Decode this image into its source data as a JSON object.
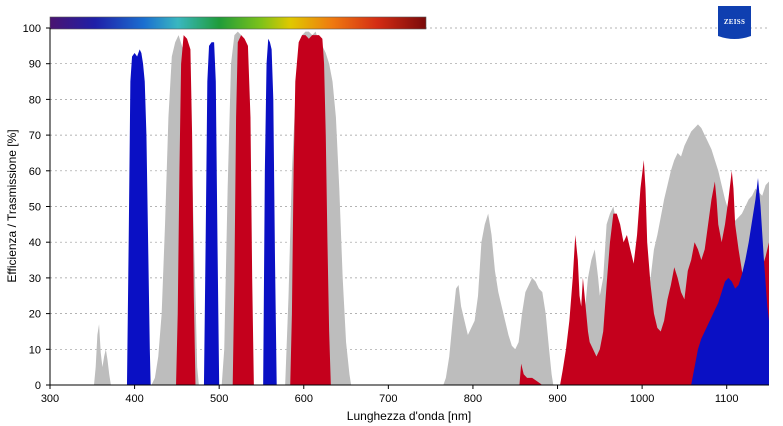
{
  "chart_data": {
    "type": "area",
    "title": "",
    "xlabel": "Lunghezza d'onda [nm]",
    "ylabel": "Efficienza / Trasmissione [%]",
    "xlim": [
      300,
      1150
    ],
    "ylim": [
      0,
      100
    ],
    "xticks": [
      300,
      400,
      500,
      600,
      700,
      800,
      900,
      1000,
      1100
    ],
    "yticks": [
      0,
      10,
      20,
      30,
      40,
      50,
      60,
      70,
      80,
      90,
      100
    ],
    "grid": "horizontal dashed",
    "colorbar_range": [
      300,
      750
    ],
    "series": [
      {
        "color": "#bdbdbd",
        "points": [
          [
            300,
            0
          ],
          [
            352,
            0
          ],
          [
            354,
            5
          ],
          [
            356,
            14
          ],
          [
            358,
            17
          ],
          [
            360,
            9
          ],
          [
            362,
            5
          ],
          [
            364,
            8
          ],
          [
            366,
            10
          ],
          [
            368,
            7
          ],
          [
            370,
            3
          ],
          [
            372,
            0
          ],
          [
            420,
            0
          ],
          [
            424,
            2
          ],
          [
            428,
            8
          ],
          [
            432,
            20
          ],
          [
            436,
            45
          ],
          [
            440,
            75
          ],
          [
            444,
            92
          ],
          [
            448,
            96
          ],
          [
            452,
            98
          ],
          [
            456,
            95
          ],
          [
            460,
            92
          ],
          [
            464,
            90
          ],
          [
            468,
            60
          ],
          [
            472,
            25
          ],
          [
            474,
            5
          ],
          [
            476,
            0
          ],
          [
            503,
            0
          ],
          [
            506,
            10
          ],
          [
            510,
            55
          ],
          [
            514,
            90
          ],
          [
            518,
            98
          ],
          [
            522,
            99
          ],
          [
            526,
            98
          ],
          [
            530,
            96
          ],
          [
            534,
            70
          ],
          [
            538,
            20
          ],
          [
            540,
            0
          ],
          [
            578,
            0
          ],
          [
            582,
            25
          ],
          [
            586,
            60
          ],
          [
            590,
            80
          ],
          [
            594,
            92
          ],
          [
            598,
            98
          ],
          [
            602,
            99
          ],
          [
            606,
            99
          ],
          [
            610,
            98
          ],
          [
            614,
            99
          ],
          [
            618,
            96
          ],
          [
            622,
            95
          ],
          [
            626,
            93
          ],
          [
            630,
            90
          ],
          [
            634,
            85
          ],
          [
            638,
            75
          ],
          [
            642,
            55
          ],
          [
            646,
            30
          ],
          [
            650,
            12
          ],
          [
            654,
            3
          ],
          [
            656,
            0
          ],
          [
            765,
            0
          ],
          [
            768,
            2
          ],
          [
            772,
            8
          ],
          [
            776,
            18
          ],
          [
            780,
            27
          ],
          [
            783,
            28
          ],
          [
            786,
            22
          ],
          [
            790,
            18
          ],
          [
            794,
            14
          ],
          [
            798,
            16
          ],
          [
            802,
            18
          ],
          [
            806,
            25
          ],
          [
            810,
            40
          ],
          [
            814,
            45
          ],
          [
            818,
            48
          ],
          [
            822,
            42
          ],
          [
            826,
            32
          ],
          [
            830,
            26
          ],
          [
            834,
            22
          ],
          [
            838,
            18
          ],
          [
            842,
            14
          ],
          [
            846,
            11
          ],
          [
            850,
            10
          ],
          [
            854,
            12
          ],
          [
            858,
            20
          ],
          [
            862,
            26
          ],
          [
            866,
            28
          ],
          [
            870,
            30
          ],
          [
            874,
            29
          ],
          [
            878,
            27
          ],
          [
            882,
            26
          ],
          [
            886,
            20
          ],
          [
            890,
            10
          ],
          [
            893,
            3
          ],
          [
            895,
            0
          ],
          [
            925,
            0
          ],
          [
            928,
            10
          ],
          [
            932,
            20
          ],
          [
            936,
            30
          ],
          [
            940,
            35
          ],
          [
            944,
            38
          ],
          [
            948,
            30
          ],
          [
            950,
            25
          ],
          [
            954,
            30
          ],
          [
            958,
            45
          ],
          [
            962,
            48
          ],
          [
            966,
            50
          ],
          [
            970,
            45
          ],
          [
            974,
            35
          ],
          [
            978,
            30
          ],
          [
            982,
            32
          ],
          [
            986,
            36
          ],
          [
            990,
            30
          ],
          [
            994,
            25
          ],
          [
            998,
            20
          ],
          [
            1002,
            18
          ],
          [
            1006,
            22
          ],
          [
            1010,
            30
          ],
          [
            1014,
            38
          ],
          [
            1018,
            42
          ],
          [
            1022,
            47
          ],
          [
            1026,
            52
          ],
          [
            1030,
            56
          ],
          [
            1034,
            60
          ],
          [
            1038,
            63
          ],
          [
            1042,
            65
          ],
          [
            1046,
            64
          ],
          [
            1050,
            67
          ],
          [
            1054,
            69
          ],
          [
            1058,
            71
          ],
          [
            1062,
            72
          ],
          [
            1066,
            73
          ],
          [
            1070,
            72
          ],
          [
            1074,
            70
          ],
          [
            1078,
            68
          ],
          [
            1082,
            66
          ],
          [
            1086,
            63
          ],
          [
            1090,
            60
          ],
          [
            1094,
            56
          ],
          [
            1098,
            52
          ],
          [
            1102,
            49
          ],
          [
            1106,
            48
          ],
          [
            1110,
            46
          ],
          [
            1114,
            47
          ],
          [
            1118,
            48
          ],
          [
            1122,
            50
          ],
          [
            1126,
            52
          ],
          [
            1130,
            53
          ],
          [
            1134,
            55
          ],
          [
            1138,
            54
          ],
          [
            1142,
            53
          ],
          [
            1146,
            56
          ],
          [
            1150,
            57
          ],
          [
            1150,
            0
          ]
        ]
      },
      {
        "color": "#c4001c",
        "points": [
          [
            300,
            0
          ],
          [
            449,
            0
          ],
          [
            451,
            20
          ],
          [
            453,
            60
          ],
          [
            455,
            90
          ],
          [
            458,
            98
          ],
          [
            462,
            97
          ],
          [
            466,
            94
          ],
          [
            468,
            70
          ],
          [
            470,
            25
          ],
          [
            472,
            0
          ],
          [
            516,
            0
          ],
          [
            518,
            30
          ],
          [
            520,
            75
          ],
          [
            522,
            96
          ],
          [
            526,
            98
          ],
          [
            530,
            97
          ],
          [
            534,
            95
          ],
          [
            537,
            75
          ],
          [
            539,
            30
          ],
          [
            541,
            0
          ],
          [
            584,
            0
          ],
          [
            586,
            20
          ],
          [
            588,
            60
          ],
          [
            590,
            85
          ],
          [
            594,
            96
          ],
          [
            598,
            98
          ],
          [
            602,
            98
          ],
          [
            606,
            97
          ],
          [
            610,
            98
          ],
          [
            614,
            98
          ],
          [
            618,
            98
          ],
          [
            622,
            97
          ],
          [
            624,
            90
          ],
          [
            626,
            70
          ],
          [
            628,
            40
          ],
          [
            630,
            15
          ],
          [
            632,
            0
          ],
          [
            855,
            0
          ],
          [
            857,
            6
          ],
          [
            860,
            3
          ],
          [
            864,
            2
          ],
          [
            870,
            2
          ],
          [
            876,
            1
          ],
          [
            882,
            0
          ],
          [
            903,
            0
          ],
          [
            906,
            4
          ],
          [
            910,
            10
          ],
          [
            914,
            18
          ],
          [
            918,
            30
          ],
          [
            921,
            42
          ],
          [
            924,
            35
          ],
          [
            926,
            25
          ],
          [
            928,
            22
          ],
          [
            930,
            30
          ],
          [
            932,
            25
          ],
          [
            934,
            20
          ],
          [
            936,
            15
          ],
          [
            938,
            12
          ],
          [
            942,
            10
          ],
          [
            946,
            8
          ],
          [
            950,
            10
          ],
          [
            954,
            15
          ],
          [
            958,
            28
          ],
          [
            962,
            40
          ],
          [
            966,
            48
          ],
          [
            970,
            48
          ],
          [
            974,
            45
          ],
          [
            978,
            40
          ],
          [
            982,
            42
          ],
          [
            986,
            38
          ],
          [
            990,
            34
          ],
          [
            994,
            42
          ],
          [
            998,
            55
          ],
          [
            1002,
            63
          ],
          [
            1004,
            55
          ],
          [
            1006,
            40
          ],
          [
            1010,
            28
          ],
          [
            1014,
            20
          ],
          [
            1018,
            16
          ],
          [
            1022,
            15
          ],
          [
            1026,
            18
          ],
          [
            1030,
            24
          ],
          [
            1034,
            28
          ],
          [
            1038,
            33
          ],
          [
            1042,
            30
          ],
          [
            1046,
            26
          ],
          [
            1050,
            24
          ],
          [
            1054,
            32
          ],
          [
            1058,
            35
          ],
          [
            1062,
            40
          ],
          [
            1066,
            38
          ],
          [
            1070,
            35
          ],
          [
            1074,
            38
          ],
          [
            1078,
            45
          ],
          [
            1082,
            52
          ],
          [
            1086,
            57
          ],
          [
            1088,
            52
          ],
          [
            1090,
            45
          ],
          [
            1094,
            40
          ],
          [
            1098,
            45
          ],
          [
            1102,
            52
          ],
          [
            1106,
            60
          ],
          [
            1108,
            55
          ],
          [
            1110,
            45
          ],
          [
            1114,
            38
          ],
          [
            1118,
            32
          ],
          [
            1122,
            28
          ],
          [
            1126,
            25
          ],
          [
            1130,
            22
          ],
          [
            1134,
            26
          ],
          [
            1138,
            30
          ],
          [
            1142,
            33
          ],
          [
            1146,
            36
          ],
          [
            1150,
            40
          ],
          [
            1150,
            0
          ]
        ]
      },
      {
        "color": "#0a10c4",
        "points": [
          [
            300,
            0
          ],
          [
            391,
            0
          ],
          [
            393,
            40
          ],
          [
            395,
            85
          ],
          [
            397,
            92
          ],
          [
            400,
            93
          ],
          [
            403,
            92
          ],
          [
            406,
            94
          ],
          [
            408,
            93
          ],
          [
            410,
            90
          ],
          [
            412,
            85
          ],
          [
            414,
            70
          ],
          [
            416,
            40
          ],
          [
            418,
            10
          ],
          [
            419,
            0
          ],
          [
            482,
            0
          ],
          [
            484,
            40
          ],
          [
            486,
            85
          ],
          [
            488,
            95
          ],
          [
            491,
            96
          ],
          [
            494,
            96
          ],
          [
            496,
            85
          ],
          [
            498,
            40
          ],
          [
            500,
            0
          ],
          [
            552,
            0
          ],
          [
            554,
            60
          ],
          [
            556,
            90
          ],
          [
            558,
            97
          ],
          [
            560,
            96
          ],
          [
            562,
            94
          ],
          [
            564,
            80
          ],
          [
            566,
            35
          ],
          [
            568,
            0
          ],
          [
            1058,
            0
          ],
          [
            1062,
            5
          ],
          [
            1066,
            10
          ],
          [
            1070,
            13
          ],
          [
            1074,
            15
          ],
          [
            1078,
            17
          ],
          [
            1082,
            19
          ],
          [
            1086,
            21
          ],
          [
            1090,
            23
          ],
          [
            1094,
            26
          ],
          [
            1098,
            29
          ],
          [
            1102,
            30
          ],
          [
            1106,
            29
          ],
          [
            1110,
            27
          ],
          [
            1114,
            28
          ],
          [
            1118,
            31
          ],
          [
            1122,
            35
          ],
          [
            1126,
            40
          ],
          [
            1130,
            46
          ],
          [
            1134,
            52
          ],
          [
            1137,
            58
          ],
          [
            1140,
            50
          ],
          [
            1144,
            35
          ],
          [
            1148,
            22
          ],
          [
            1150,
            18
          ],
          [
            1150,
            0
          ]
        ]
      }
    ]
  },
  "logo": {
    "text": "ZEISS",
    "color": "#0f3fb0"
  }
}
